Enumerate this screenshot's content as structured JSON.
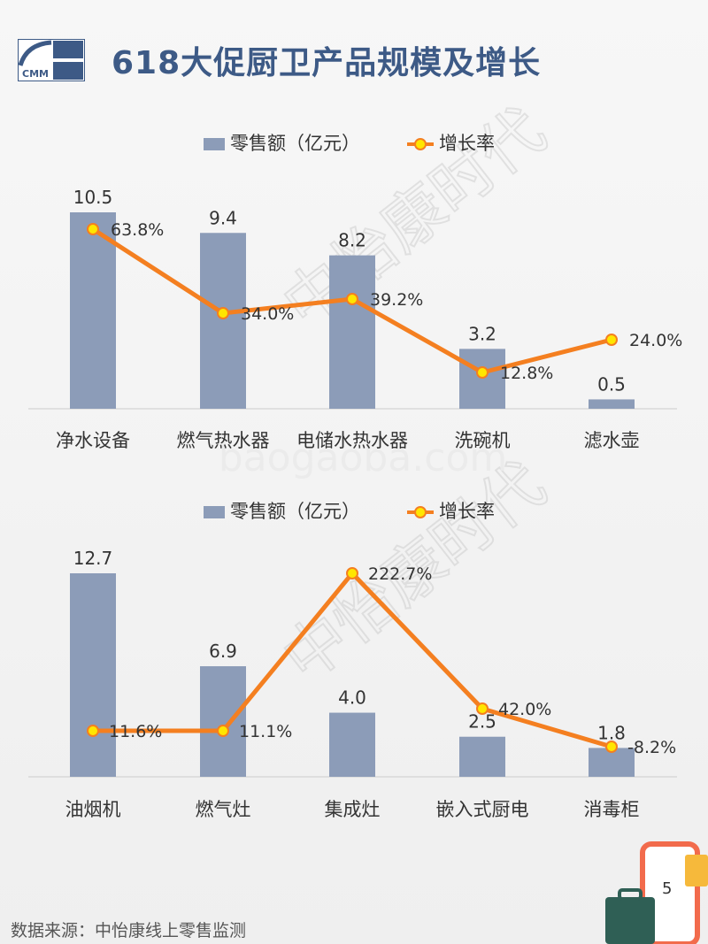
{
  "header": {
    "title": "618大促厨卫产品规模及增长",
    "logo_text": "CMM"
  },
  "legend": {
    "bar_label": "零售额（亿元）",
    "line_label": "增长率"
  },
  "colors": {
    "bar": "#8c9cb8",
    "line": "#f47f20",
    "marker_fill": "#ffe600",
    "title": "#3d5a86"
  },
  "chart_data": [
    {
      "type": "bar",
      "categories": [
        "净水设备",
        "燃气热水器",
        "电储水热水器",
        "洗碗机",
        "滤水壶"
      ],
      "series": [
        {
          "name": "零售额（亿元）",
          "values": [
            10.5,
            9.4,
            8.2,
            3.2,
            0.5
          ]
        },
        {
          "name": "增长率",
          "type": "line",
          "values": [
            63.8,
            34.0,
            39.2,
            12.8,
            24.0
          ]
        }
      ],
      "bar_labels": [
        "10.5",
        "9.4",
        "8.2",
        "3.2",
        "0.5"
      ],
      "line_labels": [
        "63.8%",
        "34.0%",
        "39.2%",
        "12.8%",
        "24.0%"
      ]
    },
    {
      "type": "bar",
      "categories": [
        "油烟机",
        "燃气灶",
        "集成灶",
        "嵌入式厨电",
        "消毒柜"
      ],
      "series": [
        {
          "name": "零售额（亿元）",
          "values": [
            12.7,
            6.9,
            4.0,
            2.5,
            1.8
          ]
        },
        {
          "name": "增长率",
          "type": "line",
          "values": [
            11.6,
            11.1,
            222.7,
            42.0,
            -8.2
          ]
        }
      ],
      "bar_labels": [
        "12.7",
        "6.9",
        "4.0",
        "2.5",
        "1.8"
      ],
      "line_labels": [
        "11.6%",
        "11.1%",
        "222.7%",
        "42.0%",
        "-8.2%"
      ]
    }
  ],
  "watermark": {
    "text": "中怡康时代",
    "site": "baogaoba.com"
  },
  "footer": {
    "source": "数据来源：中怡康线上零售监测",
    "page": "5"
  }
}
